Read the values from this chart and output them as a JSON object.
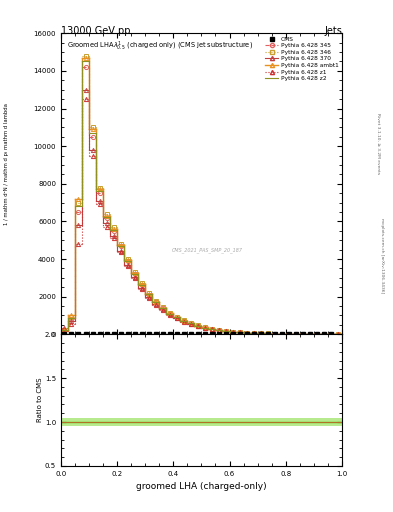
{
  "title_top": "13000 GeV pp",
  "title_right": "Jets",
  "xlabel": "groomed LHA (charged-only)",
  "right_label_top": "Rivet 3.1.10, ≥ 3.2M events",
  "right_label_bottom": "mcplots.cern.ch [arXiv:1306.3436]",
  "watermark": "CMS_2021_PAS_SMP_20_187",
  "x_bins": [
    0.0,
    0.025,
    0.05,
    0.075,
    0.1,
    0.125,
    0.15,
    0.175,
    0.2,
    0.225,
    0.25,
    0.275,
    0.3,
    0.325,
    0.35,
    0.375,
    0.4,
    0.425,
    0.45,
    0.475,
    0.5,
    0.525,
    0.55,
    0.575,
    0.6,
    0.625,
    0.65,
    0.675,
    0.7,
    0.725,
    0.75,
    0.775,
    0.8,
    0.825,
    0.85,
    0.875,
    0.9,
    0.925,
    0.95,
    0.975,
    1.0
  ],
  "x_centers": [
    0.0125,
    0.0375,
    0.0625,
    0.0875,
    0.1125,
    0.1375,
    0.1625,
    0.1875,
    0.2125,
    0.2375,
    0.2625,
    0.2875,
    0.3125,
    0.3375,
    0.3625,
    0.3875,
    0.4125,
    0.4375,
    0.4625,
    0.4875,
    0.5125,
    0.5375,
    0.5625,
    0.5875,
    0.6125,
    0.6375,
    0.6625,
    0.6875,
    0.7125,
    0.7375,
    0.7625,
    0.7875,
    0.8125,
    0.8375,
    0.8625,
    0.8875,
    0.9125,
    0.9375,
    0.9625,
    0.9875
  ],
  "py345_y": [
    200,
    800,
    6500,
    14200,
    10500,
    7500,
    6200,
    5500,
    4700,
    3900,
    3200,
    2600,
    2100,
    1700,
    1400,
    1100,
    900,
    720,
    590,
    460,
    360,
    280,
    220,
    170,
    130,
    100,
    80,
    60,
    50,
    38,
    30,
    22,
    17,
    13,
    10,
    7,
    5,
    4,
    3,
    2
  ],
  "py346_y": [
    200,
    900,
    7000,
    14800,
    11000,
    7800,
    6400,
    5700,
    4800,
    4000,
    3300,
    2700,
    2200,
    1750,
    1430,
    1130,
    920,
    740,
    605,
    475,
    370,
    290,
    225,
    175,
    135,
    105,
    82,
    62,
    52,
    40,
    32,
    23,
    18,
    14,
    10,
    8,
    6,
    4,
    3,
    2
  ],
  "py370_y": [
    150,
    700,
    5800,
    13000,
    9800,
    7100,
    5900,
    5200,
    4450,
    3700,
    3050,
    2480,
    2000,
    1620,
    1330,
    1050,
    860,
    690,
    560,
    440,
    345,
    268,
    210,
    162,
    125,
    96,
    76,
    58,
    47,
    36,
    28,
    21,
    16,
    12,
    9,
    7,
    5,
    4,
    3,
    2
  ],
  "pyambt1_y": [
    250,
    1000,
    7200,
    14700,
    10900,
    7700,
    6300,
    5600,
    4750,
    3950,
    3250,
    2650,
    2150,
    1720,
    1400,
    1110,
    910,
    730,
    595,
    465,
    365,
    285,
    222,
    172,
    132,
    102,
    81,
    61,
    51,
    39,
    31,
    23,
    17,
    13,
    10,
    7,
    5,
    4,
    3,
    2
  ],
  "pyz1_y": [
    350,
    550,
    4800,
    12500,
    9500,
    6900,
    5700,
    5100,
    4350,
    3620,
    2980,
    2420,
    1950,
    1580,
    1290,
    1020,
    840,
    670,
    545,
    425,
    335,
    260,
    203,
    157,
    120,
    93,
    73,
    56,
    45,
    35,
    27,
    20,
    15,
    11,
    9,
    6,
    5,
    4,
    3,
    2
  ],
  "pyz2_y": [
    200,
    850,
    6800,
    14500,
    10700,
    7600,
    6250,
    5550,
    4700,
    3920,
    3220,
    2620,
    2120,
    1700,
    1390,
    1100,
    900,
    720,
    585,
    458,
    358,
    278,
    218,
    168,
    129,
    99,
    79,
    60,
    50,
    38,
    30,
    22,
    17,
    13,
    10,
    7,
    5,
    4,
    3,
    2
  ],
  "py345_color": "#e06060",
  "py346_color": "#c8a030",
  "py370_color": "#c04040",
  "pyambt1_color": "#e89020",
  "pyz1_color": "#cc3030",
  "pyz2_color": "#909020",
  "ylim": [
    0,
    16000
  ],
  "yticks": [
    0,
    2000,
    4000,
    6000,
    8000,
    10000,
    12000,
    14000,
    16000
  ],
  "ratio_ylim": [
    0.5,
    2.0
  ],
  "ratio_yticks": [
    0.5,
    1.0,
    1.5,
    2.0
  ],
  "bg_color": "#ffffff",
  "green_band_lo": 0.95,
  "green_band_hi": 1.05
}
